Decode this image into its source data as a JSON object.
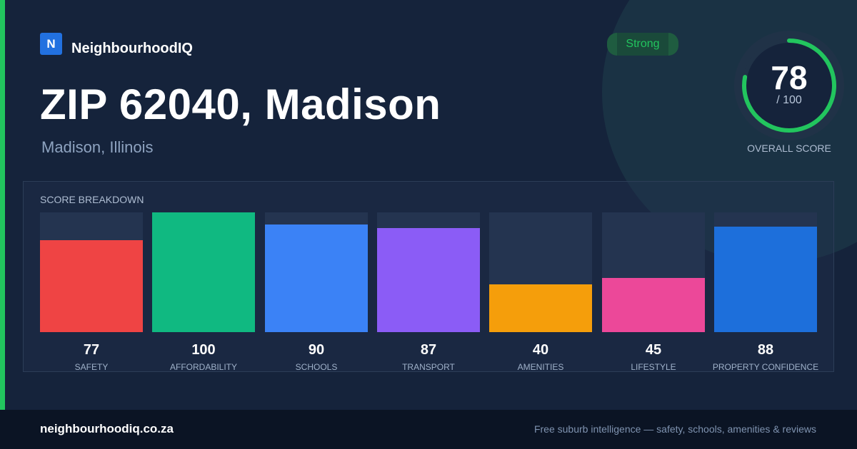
{
  "brand": {
    "logo_letter": "N",
    "name": "NeighbourhoodIQ"
  },
  "header": {
    "title": "ZIP 62040, Madison",
    "subtitle": "Madison, Illinois"
  },
  "badge": {
    "label": "Strong"
  },
  "overall": {
    "score": "78",
    "denominator": "/ 100",
    "label": "OVERALL SCORE",
    "fraction": 0.78
  },
  "panel": {
    "title": "SCORE BREAKDOWN"
  },
  "colors": {
    "accent": "#22c55e",
    "safety": "#ef4444",
    "affordability": "#10b981",
    "schools": "#3b82f6",
    "transport": "#8b5cf6",
    "amenities": "#f59e0b",
    "lifestyle": "#ec4899",
    "property_confidence": "#1d6fdb"
  },
  "chart_data": {
    "type": "bar",
    "title": "SCORE BREAKDOWN",
    "categories": [
      "SAFETY",
      "AFFORDABILITY",
      "SCHOOLS",
      "TRANSPORT",
      "AMENITIES",
      "LIFESTYLE",
      "PROPERTY CONFIDENCE"
    ],
    "values": [
      77,
      100,
      90,
      87,
      40,
      45,
      88
    ],
    "colors": [
      "#ef4444",
      "#10b981",
      "#3b82f6",
      "#8b5cf6",
      "#f59e0b",
      "#ec4899",
      "#1d6fdb"
    ],
    "ylim": [
      0,
      100
    ],
    "grid": false,
    "legend": "none"
  },
  "footer": {
    "site": "neighbourhoodiq.co.za",
    "tagline": "Free suburb intelligence — safety, schools, amenities & reviews"
  }
}
